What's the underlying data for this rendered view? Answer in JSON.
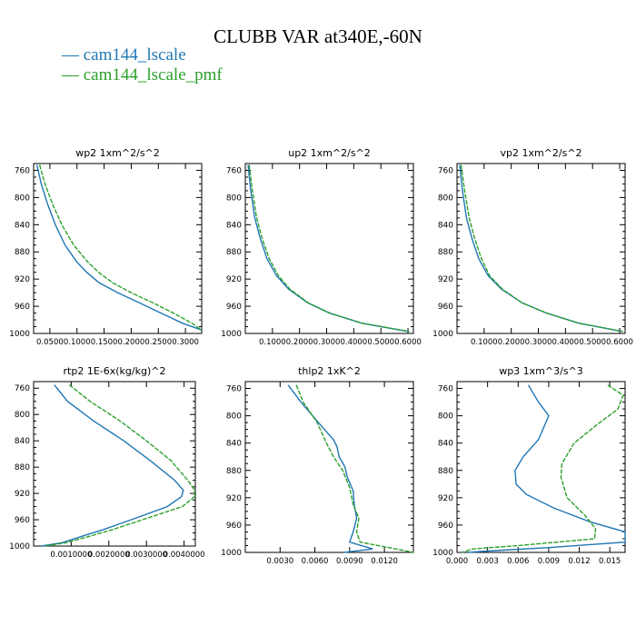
{
  "title": "CLUBB VAR at340E,-60N",
  "legend": [
    {
      "label": "cam144_lscale",
      "color": "#1f77b4"
    },
    {
      "label": "cam144_lscale_pmf",
      "color": "#2ca02c"
    }
  ],
  "chart_data": [
    {
      "type": "line",
      "title": "wp2  1xm^2/s^2",
      "ylim": [
        1000,
        750
      ],
      "yreversed": true,
      "yticks": [
        760,
        800,
        840,
        880,
        920,
        960,
        1000
      ],
      "xlim": [
        0.02,
        0.33
      ],
      "xticks": [
        0.05,
        0.1,
        0.15,
        0.2,
        0.25,
        0.3
      ],
      "xticklabels": [
        "0.0500",
        "0.1000",
        "0.1500",
        "0.2000",
        "0.2500",
        "0.3000"
      ],
      "series": [
        {
          "name": "cam144_lscale",
          "y": [
            752,
            780,
            810,
            840,
            870,
            895,
            910,
            925,
            940,
            955,
            970,
            985,
            995
          ],
          "x": [
            0.026,
            0.034,
            0.046,
            0.06,
            0.078,
            0.1,
            0.118,
            0.14,
            0.175,
            0.215,
            0.255,
            0.295,
            0.33
          ]
        },
        {
          "name": "cam144_lscale_pmf",
          "y": [
            752,
            780,
            810,
            840,
            870,
            895,
            910,
            925,
            940,
            955,
            970,
            985,
            995
          ],
          "x": [
            0.031,
            0.041,
            0.055,
            0.072,
            0.094,
            0.12,
            0.14,
            0.165,
            0.2,
            0.24,
            0.278,
            0.312,
            0.333
          ]
        }
      ]
    },
    {
      "type": "line",
      "title": "up2  1xm^2/s^2",
      "ylim": [
        1000,
        750
      ],
      "yreversed": true,
      "yticks": [
        760,
        800,
        840,
        880,
        920,
        960,
        1000
      ],
      "xlim": [
        0.0,
        0.62
      ],
      "xticks": [
        0.1,
        0.2,
        0.3,
        0.4,
        0.5,
        0.6
      ],
      "xticklabels": [
        "0.1000",
        "0.2000",
        "0.3000",
        "0.4000",
        "0.5000",
        "0.6000"
      ],
      "series": [
        {
          "name": "cam144_lscale",
          "y": [
            752,
            790,
            830,
            860,
            890,
            915,
            935,
            955,
            970,
            985,
            997
          ],
          "x": [
            0.01,
            0.02,
            0.035,
            0.055,
            0.08,
            0.115,
            0.16,
            0.23,
            0.31,
            0.43,
            0.6
          ]
        },
        {
          "name": "cam144_lscale_pmf",
          "y": [
            752,
            790,
            830,
            860,
            890,
            915,
            935,
            955,
            970,
            985,
            997
          ],
          "x": [
            0.014,
            0.026,
            0.042,
            0.062,
            0.088,
            0.122,
            0.165,
            0.232,
            0.312,
            0.432,
            0.605
          ]
        }
      ]
    },
    {
      "type": "line",
      "title": "vp2  1xm^2/s^2",
      "ylim": [
        1000,
        750
      ],
      "yreversed": true,
      "yticks": [
        760,
        800,
        840,
        880,
        920,
        960,
        1000
      ],
      "xlim": [
        0.0,
        0.62
      ],
      "xticks": [
        0.1,
        0.2,
        0.3,
        0.4,
        0.5,
        0.6
      ],
      "xticklabels": [
        "0.1000",
        "0.2000",
        "0.3000",
        "0.4000",
        "0.5000",
        "0.6000"
      ],
      "series": [
        {
          "name": "cam144_lscale",
          "y": [
            752,
            790,
            830,
            860,
            890,
            915,
            935,
            955,
            970,
            985,
            997
          ],
          "x": [
            0.01,
            0.02,
            0.035,
            0.055,
            0.08,
            0.115,
            0.165,
            0.24,
            0.33,
            0.45,
            0.61
          ]
        },
        {
          "name": "cam144_lscale_pmf",
          "y": [
            752,
            790,
            830,
            860,
            890,
            915,
            935,
            955,
            970,
            985,
            997
          ],
          "x": [
            0.015,
            0.028,
            0.045,
            0.065,
            0.09,
            0.12,
            0.168,
            0.24,
            0.33,
            0.45,
            0.612
          ]
        }
      ]
    },
    {
      "type": "line",
      "title": "rtp2  1E-6x(kg/kg)^2",
      "ylim": [
        1000,
        750
      ],
      "yreversed": true,
      "yticks": [
        760,
        800,
        840,
        880,
        920,
        960,
        1000
      ],
      "xlim": [
        0.0,
        4.3e-05
      ],
      "xticks": [
        1e-05,
        2e-05,
        3e-05,
        4e-05
      ],
      "xticklabels": [
        "0.0010000",
        "0.0020000",
        "0.0030000",
        "0.0040000"
      ],
      "series": [
        {
          "name": "cam144_lscale",
          "y": [
            755,
            780,
            810,
            840,
            870,
            900,
            915,
            925,
            940,
            960,
            975,
            985,
            995,
            1000
          ],
          "x": [
            5.5e-06,
            9e-06,
            1.6e-05,
            2.4e-05,
            3.1e-05,
            3.75e-05,
            3.98e-05,
            3.93e-05,
            3.55e-05,
            2.6e-05,
            1.85e-05,
            1.3e-05,
            7.5e-06,
            2e-06
          ]
        },
        {
          "name": "cam144_lscale_pmf",
          "y": [
            755,
            780,
            810,
            840,
            870,
            900,
            915,
            925,
            940,
            960,
            975,
            985,
            995,
            1000
          ],
          "x": [
            9.5e-06,
            1.5e-05,
            2.3e-05,
            3e-05,
            3.65e-05,
            4.1e-05,
            4.28e-05,
            4.28e-05,
            3.95e-05,
            2.9e-05,
            2.1e-05,
            1.5e-05,
            8.5e-06,
            3e-06
          ]
        }
      ]
    },
    {
      "type": "line",
      "title": "thlp2  1xK^2",
      "ylim": [
        1000,
        750
      ],
      "yreversed": true,
      "yticks": [
        760,
        800,
        840,
        880,
        920,
        960,
        1000
      ],
      "xlim": [
        0.0,
        0.0145
      ],
      "xticks": [
        0.003,
        0.006,
        0.009,
        0.012
      ],
      "xticklabels": [
        "0.0030",
        "0.0060",
        "0.0090",
        "0.0120"
      ],
      "series": [
        {
          "name": "cam144_lscale",
          "y": [
            755,
            780,
            810,
            835,
            845,
            860,
            875,
            890,
            910,
            930,
            950,
            970,
            985,
            995,
            1000
          ],
          "x": [
            0.0037,
            0.0048,
            0.0063,
            0.0076,
            0.0079,
            0.0081,
            0.0086,
            0.0088,
            0.0093,
            0.0094,
            0.0096,
            0.0093,
            0.009,
            0.011,
            0.0085
          ]
        },
        {
          "name": "cam144_lscale_pmf",
          "y": [
            755,
            780,
            810,
            840,
            860,
            880,
            905,
            930,
            950,
            970,
            985,
            995,
            1000
          ],
          "x": [
            0.0044,
            0.005,
            0.0062,
            0.007,
            0.0076,
            0.0084,
            0.009,
            0.0093,
            0.0098,
            0.0096,
            0.0099,
            0.013,
            0.0145
          ]
        }
      ]
    },
    {
      "type": "line",
      "title": "wp3  1xm^3/s^3",
      "ylim": [
        1000,
        750
      ],
      "yreversed": true,
      "yticks": [
        760,
        800,
        840,
        880,
        920,
        960,
        1000
      ],
      "xlim": [
        0.0,
        0.0165
      ],
      "xticks": [
        0.0,
        0.003,
        0.006,
        0.009,
        0.012,
        0.015
      ],
      "xticklabels": [
        "0.000",
        "0.003",
        "0.006",
        "0.009",
        "0.012",
        "0.015"
      ],
      "series": [
        {
          "name": "cam144_lscale",
          "y": [
            755,
            780,
            800,
            835,
            860,
            880,
            900,
            915,
            935,
            955,
            970,
            985,
            993,
            998,
            1000
          ],
          "x": [
            0.007,
            0.008,
            0.009,
            0.008,
            0.0065,
            0.0057,
            0.0058,
            0.0068,
            0.0095,
            0.013,
            0.0165,
            0.0165,
            0.009,
            0.003,
            0.001
          ]
        },
        {
          "name": "cam144_lscale_pmf",
          "y": [
            755,
            770,
            790,
            810,
            840,
            870,
            890,
            920,
            945,
            965,
            980,
            990,
            995,
            1000
          ],
          "x": [
            0.0148,
            0.0163,
            0.0158,
            0.014,
            0.0115,
            0.0103,
            0.0102,
            0.0108,
            0.0125,
            0.0136,
            0.0135,
            0.006,
            0.0015,
            0.0005
          ]
        }
      ]
    }
  ]
}
